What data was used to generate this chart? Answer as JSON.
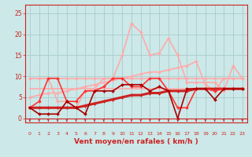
{
  "title": "",
  "xlabel": "Vent moyen/en rafales ( km/h )",
  "background_color": "#cce8e8",
  "grid_color": "#aacccc",
  "x": [
    0,
    1,
    2,
    3,
    4,
    5,
    6,
    7,
    8,
    9,
    10,
    11,
    12,
    13,
    14,
    15,
    16,
    17,
    18,
    19,
    20,
    21,
    22,
    23
  ],
  "lines": [
    {
      "y": [
        9.5,
        9.5,
        9.5,
        9.5,
        9.5,
        9.5,
        9.5,
        9.5,
        9.5,
        9.5,
        9.5,
        9.5,
        9.5,
        9.5,
        9.5,
        9.5,
        9.5,
        9.5,
        9.5,
        9.5,
        9.5,
        9.5,
        9.5,
        9.5
      ],
      "color": "#ffaaaa",
      "lw": 1.2,
      "marker": "D",
      "ms": 2.0,
      "zorder": 2
    },
    {
      "y": [
        7.0,
        7.0,
        7.0,
        7.0,
        7.0,
        7.0,
        7.0,
        7.0,
        7.0,
        7.0,
        7.0,
        7.0,
        7.0,
        7.0,
        7.0,
        7.0,
        7.0,
        7.0,
        7.0,
        7.0,
        7.0,
        7.0,
        7.0,
        7.0
      ],
      "color": "#ffaaaa",
      "lw": 1.2,
      "marker": null,
      "ms": 0,
      "zorder": 2
    },
    {
      "y": [
        5.0,
        5.5,
        6.0,
        6.0,
        6.5,
        7.0,
        7.5,
        8.0,
        8.5,
        9.0,
        9.5,
        10.0,
        10.5,
        11.0,
        11.0,
        11.5,
        12.0,
        12.5,
        13.5,
        8.0,
        6.5,
        9.5,
        9.5,
        9.5
      ],
      "color": "#ffaaaa",
      "lw": 1.2,
      "marker": "D",
      "ms": 2.0,
      "zorder": 2
    },
    {
      "y": [
        9.5,
        9.5,
        9.5,
        4.0,
        4.0,
        2.5,
        6.5,
        7.0,
        9.5,
        9.5,
        15.0,
        22.5,
        20.5,
        15.0,
        15.5,
        19.0,
        15.0,
        8.5,
        8.5,
        8.5,
        8.5,
        6.5,
        12.5,
        9.5
      ],
      "color": "#ffaaaa",
      "lw": 1.2,
      "marker": "D",
      "ms": 2.0,
      "zorder": 2
    },
    {
      "y": [
        2.5,
        2.5,
        2.5,
        2.5,
        2.5,
        2.5,
        3.0,
        3.5,
        4.0,
        4.5,
        5.0,
        5.5,
        5.5,
        6.0,
        6.0,
        6.5,
        6.5,
        6.5,
        7.0,
        7.0,
        7.0,
        7.0,
        7.0,
        7.0
      ],
      "color": "#cc2222",
      "lw": 2.2,
      "marker": "D",
      "ms": 2.0,
      "zorder": 4
    },
    {
      "y": [
        2.5,
        4.0,
        9.5,
        9.5,
        4.0,
        4.0,
        6.5,
        6.5,
        7.5,
        9.5,
        9.5,
        7.5,
        7.5,
        9.5,
        9.5,
        6.5,
        2.5,
        2.5,
        7.0,
        7.0,
        6.5,
        7.0,
        7.0,
        7.0
      ],
      "color": "#ff3333",
      "lw": 1.2,
      "marker": "D",
      "ms": 2.0,
      "zorder": 5
    },
    {
      "y": [
        2.5,
        1.0,
        1.0,
        1.0,
        4.0,
        2.5,
        1.0,
        6.5,
        6.5,
        6.5,
        8.0,
        8.0,
        8.0,
        6.5,
        7.5,
        6.5,
        0.0,
        7.0,
        7.0,
        7.0,
        4.5,
        7.0,
        7.0,
        7.0
      ],
      "color": "#aa0000",
      "lw": 1.2,
      "marker": "D",
      "ms": 2.0,
      "zorder": 5
    }
  ],
  "xlim": [
    -0.5,
    23.5
  ],
  "ylim": [
    -1,
    27
  ],
  "yticks": [
    0,
    5,
    10,
    15,
    20,
    25
  ],
  "xticks": [
    0,
    1,
    2,
    3,
    4,
    5,
    6,
    7,
    8,
    9,
    10,
    11,
    12,
    13,
    14,
    15,
    16,
    17,
    18,
    19,
    20,
    21,
    22,
    23
  ],
  "tick_color": "#cc2222",
  "label_color": "#cc2222",
  "axis_color": "#cc2222",
  "arrow_color": "#cc2222"
}
